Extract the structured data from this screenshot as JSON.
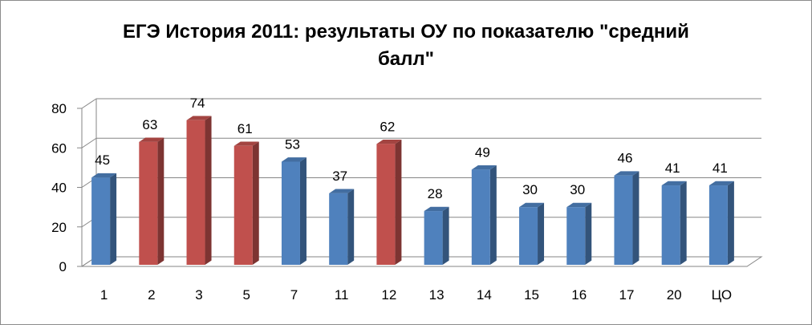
{
  "chart_data": {
    "type": "bar",
    "title": "ЕГЭ История 2011: результаты ОУ по показателю \"средний балл\"",
    "title_lines": [
      "ЕГЭ История 2011: результаты ОУ по показателю \"средний",
      "балл\""
    ],
    "categories": [
      "1",
      "2",
      "3",
      "5",
      "7",
      "11",
      "12",
      "13",
      "14",
      "15",
      "16",
      "17",
      "20",
      "ЦО"
    ],
    "values": [
      45,
      63,
      74,
      61,
      53,
      37,
      62,
      28,
      49,
      30,
      30,
      46,
      41,
      41
    ],
    "bar_colors": [
      "#4f81bd",
      "#c0504d",
      "#c0504d",
      "#c0504d",
      "#4f81bd",
      "#4f81bd",
      "#c0504d",
      "#4f81bd",
      "#4f81bd",
      "#4f81bd",
      "#4f81bd",
      "#4f81bd",
      "#4f81bd",
      "#4f81bd"
    ],
    "data_labels": [
      "45",
      "63",
      "74",
      "61",
      "53",
      "37",
      "62",
      "28",
      "49",
      "30",
      "30",
      "46",
      "41",
      "41"
    ],
    "y_ticks": [
      "0",
      "20",
      "40",
      "60",
      "80"
    ],
    "ylim": [
      0,
      80
    ],
    "xlabel": "",
    "ylabel": "",
    "grid": true,
    "legend": "none",
    "style": "3d-column"
  },
  "colors": {
    "blue": "#4f81bd",
    "red": "#c0504d",
    "gridline": "#868686",
    "wall": "#ffffff"
  }
}
